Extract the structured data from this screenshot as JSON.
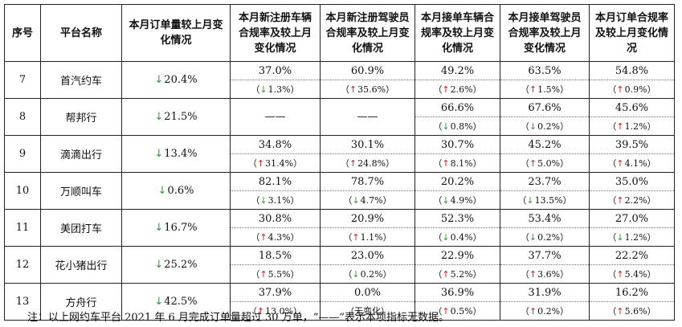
{
  "headers": [
    "序号",
    "平台名称",
    "本月订单量较上月变化情况",
    "本月新注册车辆合规率及较上月变化情况",
    "本月新注册驾驶员合规率及较上月变化情况",
    "本月接单车辆合规率及较上月变化情况",
    "本月接单驾驶员合规率及较上月变化情况",
    "本月订单合规率及较上月变化情况"
  ],
  "rows": [
    {
      "no": "7",
      "name": "首汽约车",
      "order_dir": "down",
      "order": "20.4%",
      "cells": [
        {
          "value": "37.0%",
          "dir": "down",
          "change": "1.3%"
        },
        {
          "value": "60.9%",
          "dir": "up",
          "change": "35.6%"
        },
        {
          "value": "49.2%",
          "dir": "up",
          "change": "2.6%"
        },
        {
          "value": "63.5%",
          "dir": "up",
          "change": "1.5%"
        },
        {
          "value": "54.8%",
          "dir": "up",
          "change": "0.9%"
        }
      ]
    },
    {
      "no": "8",
      "name": "帮邦行",
      "order_dir": "down",
      "order": "21.5%",
      "cells": [
        {
          "value": "——",
          "dir": "",
          "change": ""
        },
        {
          "value": "——",
          "dir": "",
          "change": ""
        },
        {
          "value": "66.6%",
          "dir": "down",
          "change": "0.8%"
        },
        {
          "value": "67.6%",
          "dir": "down",
          "change": "0.2%"
        },
        {
          "value": "45.6%",
          "dir": "up",
          "change": "1.2%"
        }
      ]
    },
    {
      "no": "9",
      "name": "滴滴出行",
      "order_dir": "down",
      "order": "13.4%",
      "cells": [
        {
          "value": "34.8%",
          "dir": "up",
          "change": "31.4%"
        },
        {
          "value": "30.1%",
          "dir": "up",
          "change": "24.8%"
        },
        {
          "value": "30.7%",
          "dir": "up",
          "change": "8.1%"
        },
        {
          "value": "45.2%",
          "dir": "up",
          "change": "5.0%"
        },
        {
          "value": "39.5%",
          "dir": "up",
          "change": "4.1%"
        }
      ]
    },
    {
      "no": "10",
      "name": "万顺叫车",
      "order_dir": "down",
      "order": "0.6%",
      "cells": [
        {
          "value": "82.1%",
          "dir": "down",
          "change": "3.1%"
        },
        {
          "value": "78.7%",
          "dir": "down",
          "change": "4.7%"
        },
        {
          "value": "20.2%",
          "dir": "down",
          "change": "4.9%"
        },
        {
          "value": "23.7%",
          "dir": "down",
          "change": "13.5%"
        },
        {
          "value": "35.0%",
          "dir": "up",
          "change": "2.2%"
        }
      ]
    },
    {
      "no": "11",
      "name": "美团打车",
      "order_dir": "down",
      "order": "16.7%",
      "cells": [
        {
          "value": "30.8%",
          "dir": "up",
          "change": "4.3%"
        },
        {
          "value": "20.9%",
          "dir": "up",
          "change": "1.1%"
        },
        {
          "value": "52.3%",
          "dir": "down",
          "change": "0.4%"
        },
        {
          "value": "53.4%",
          "dir": "down",
          "change": "0.2%"
        },
        {
          "value": "27.0%",
          "dir": "down",
          "change": "1.2%"
        }
      ]
    },
    {
      "no": "12",
      "name": "花小猪出行",
      "order_dir": "down",
      "order": "25.2%",
      "cells": [
        {
          "value": "18.5%",
          "dir": "up",
          "change": "5.5%"
        },
        {
          "value": "23.0%",
          "dir": "down",
          "change": "0.2%"
        },
        {
          "value": "22.9%",
          "dir": "up",
          "change": "5.2%"
        },
        {
          "value": "37.7%",
          "dir": "up",
          "change": "3.6%"
        },
        {
          "value": "22.2%",
          "dir": "up",
          "change": "5.4%"
        }
      ]
    },
    {
      "no": "13",
      "name": "方舟行",
      "order_dir": "down",
      "order": "42.5%",
      "cells": [
        {
          "value": "37.9%",
          "dir": "up",
          "change": "13.0%"
        },
        {
          "value": "0.0%",
          "dir": "",
          "change": "无变化"
        },
        {
          "value": "36.9%",
          "dir": "up",
          "change": "0.5%"
        },
        {
          "value": "31.9%",
          "dir": "up",
          "change": "0.2%"
        },
        {
          "value": "16.2%",
          "dir": "up",
          "change": "5.6%"
        }
      ]
    }
  ],
  "arrows": {
    "up": "↑",
    "down": "↓"
  },
  "colors": {
    "up": "#d22222",
    "down": "#2e9d3a"
  },
  "note": "注：以上网约车平台 2021 年 6 月完成订单量超过 30 万单，“——”表示本项指标无数据。"
}
